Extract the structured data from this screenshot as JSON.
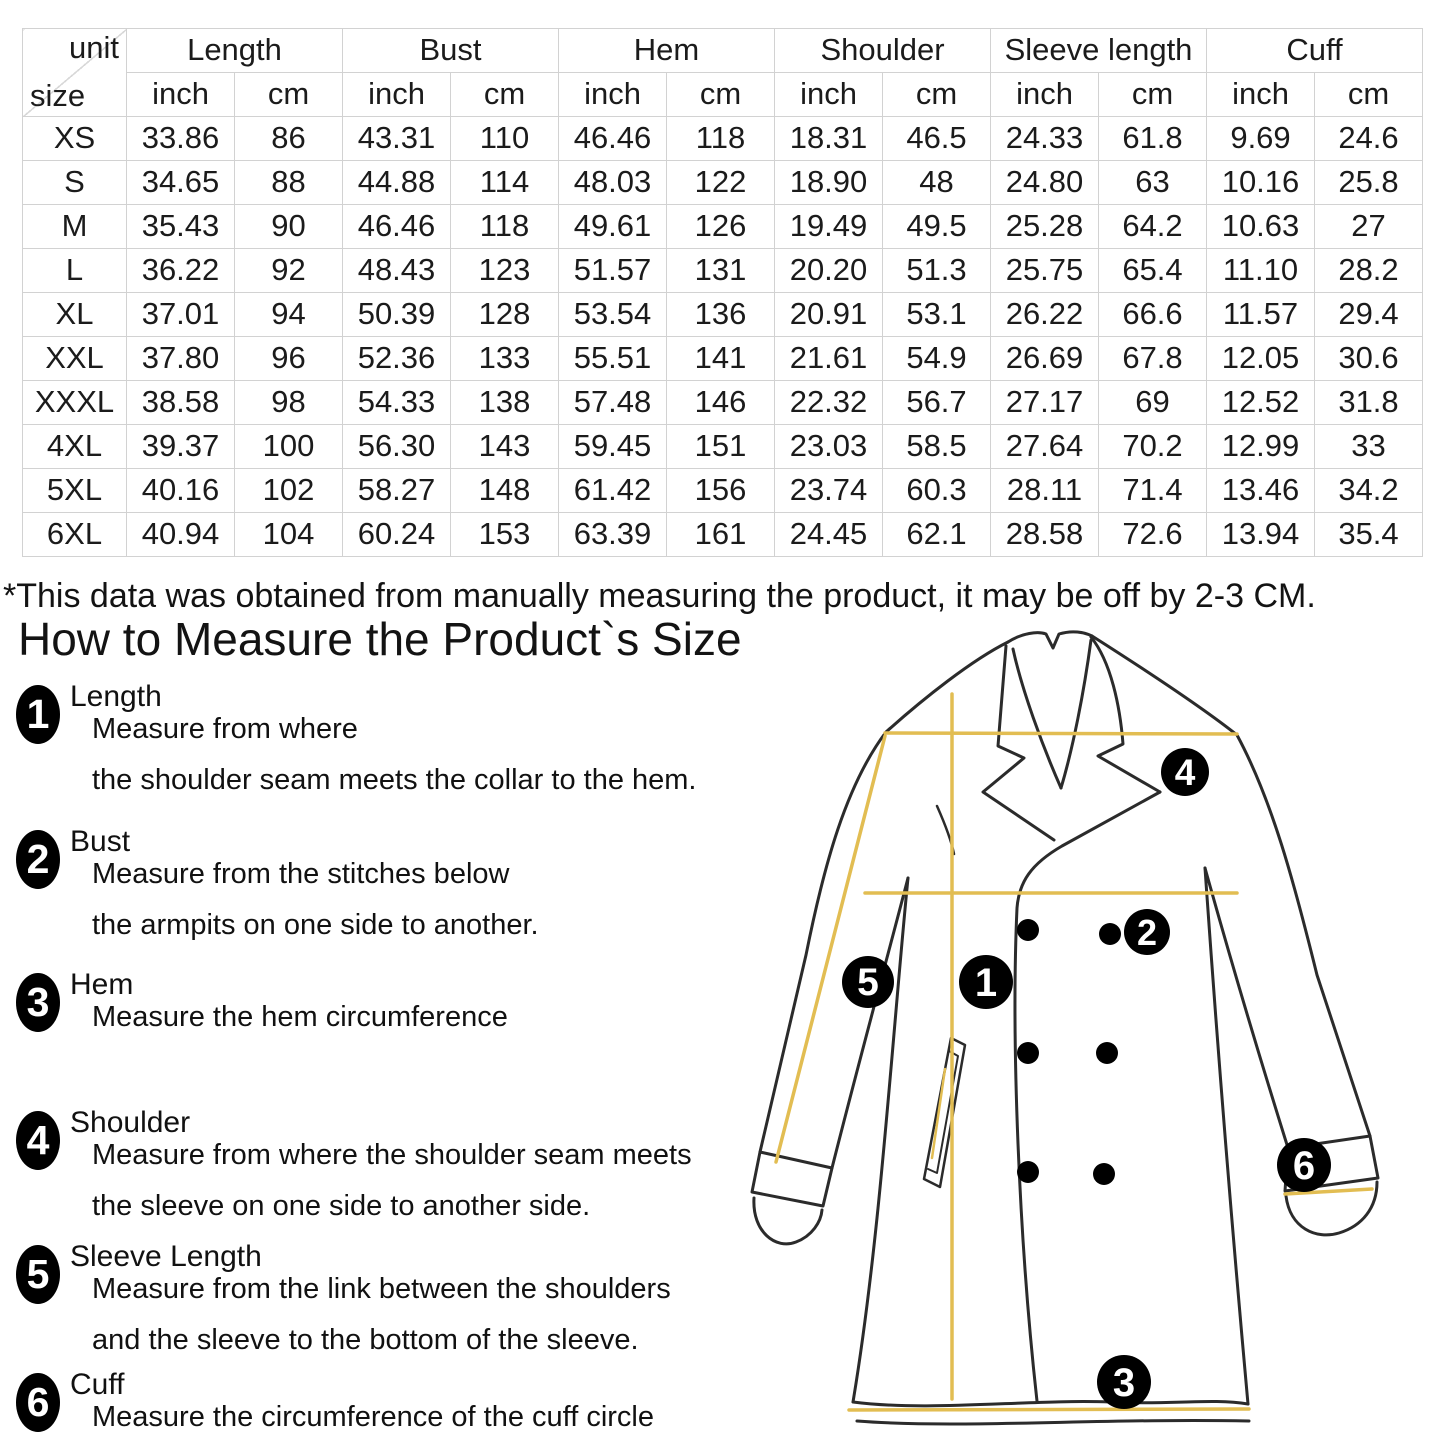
{
  "table": {
    "corner": {
      "unit": "unit",
      "size": "size"
    },
    "groups": [
      "Length",
      "Bust",
      "Hem",
      "Shoulder",
      "Sleeve length",
      "Cuff"
    ],
    "unit_labels": [
      "inch",
      "cm"
    ],
    "rows": [
      {
        "size": "XS",
        "values": [
          "33.86",
          "86",
          "43.31",
          "110",
          "46.46",
          "118",
          "18.31",
          "46.5",
          "24.33",
          "61.8",
          "9.69",
          "24.6"
        ]
      },
      {
        "size": "S",
        "values": [
          "34.65",
          "88",
          "44.88",
          "114",
          "48.03",
          "122",
          "18.90",
          "48",
          "24.80",
          "63",
          "10.16",
          "25.8"
        ]
      },
      {
        "size": "M",
        "values": [
          "35.43",
          "90",
          "46.46",
          "118",
          "49.61",
          "126",
          "19.49",
          "49.5",
          "25.28",
          "64.2",
          "10.63",
          "27"
        ]
      },
      {
        "size": "L",
        "values": [
          "36.22",
          "92",
          "48.43",
          "123",
          "51.57",
          "131",
          "20.20",
          "51.3",
          "25.75",
          "65.4",
          "11.10",
          "28.2"
        ]
      },
      {
        "size": "XL",
        "values": [
          "37.01",
          "94",
          "50.39",
          "128",
          "53.54",
          "136",
          "20.91",
          "53.1",
          "26.22",
          "66.6",
          "11.57",
          "29.4"
        ]
      },
      {
        "size": "XXL",
        "values": [
          "37.80",
          "96",
          "52.36",
          "133",
          "55.51",
          "141",
          "21.61",
          "54.9",
          "26.69",
          "67.8",
          "12.05",
          "30.6"
        ]
      },
      {
        "size": "XXXL",
        "values": [
          "38.58",
          "98",
          "54.33",
          "138",
          "57.48",
          "146",
          "22.32",
          "56.7",
          "27.17",
          "69",
          "12.52",
          "31.8"
        ]
      },
      {
        "size": "4XL",
        "values": [
          "39.37",
          "100",
          "56.30",
          "143",
          "59.45",
          "151",
          "23.03",
          "58.5",
          "27.64",
          "70.2",
          "12.99",
          "33"
        ]
      },
      {
        "size": "5XL",
        "values": [
          "40.16",
          "102",
          "58.27",
          "148",
          "61.42",
          "156",
          "23.74",
          "60.3",
          "28.11",
          "71.4",
          "13.46",
          "34.2"
        ]
      },
      {
        "size": "6XL",
        "values": [
          "40.94",
          "104",
          "60.24",
          "153",
          "63.39",
          "161",
          "24.45",
          "62.1",
          "28.58",
          "72.6",
          "13.94",
          "35.4"
        ]
      }
    ]
  },
  "note": "*This data was obtained from manually measuring the product, it may be off by 2-3 CM.",
  "section_title": "How to Measure the Product`s Size",
  "instructions": [
    {
      "num": "1",
      "title": "Length",
      "lines": [
        "Measure from where",
        "the shoulder seam meets the collar to the hem."
      ]
    },
    {
      "num": "2",
      "title": "Bust",
      "lines": [
        "Measure from the stitches below",
        "the armpits on one side to another."
      ]
    },
    {
      "num": "3",
      "title": "Hem",
      "lines": [
        "Measure the hem circumference"
      ]
    },
    {
      "num": "4",
      "title": "Shoulder",
      "lines": [
        "Measure from where the shoulder seam meets",
        "the sleeve on one side to another side."
      ]
    },
    {
      "num": "5",
      "title": "Sleeve Length",
      "lines": [
        "Measure from the link between the shoulders",
        "and the sleeve to the bottom of the sleeve."
      ]
    },
    {
      "num": "6",
      "title": "Cuff",
      "lines": [
        "Measure the circumference of the cuff circle"
      ]
    }
  ],
  "diagram": {
    "markers": [
      {
        "label": "1"
      },
      {
        "label": "2"
      },
      {
        "label": "3"
      },
      {
        "label": "4"
      },
      {
        "label": "5"
      },
      {
        "label": "6"
      }
    ],
    "colors": {
      "measure_line": "#e2bd52",
      "outline": "#2b2b2b"
    }
  }
}
